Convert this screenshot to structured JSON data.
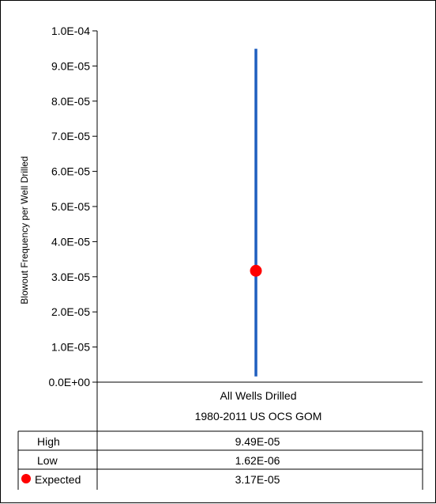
{
  "chart_data": {
    "type": "scatter",
    "ylabel": "Blowout Frequency per Well Drilled",
    "xlabel": "",
    "title": "",
    "ylim": [
      0,
      0.0001
    ],
    "y_ticks": [
      "0.0E+00",
      "1.0E-05",
      "2.0E-05",
      "3.0E-05",
      "4.0E-05",
      "5.0E-05",
      "6.0E-05",
      "7.0E-05",
      "8.0E-05",
      "9.0E-05",
      "1.0E-04"
    ],
    "categories": [
      "All Wells Drilled 1980-2011 US OCS GOM"
    ],
    "category_lines": [
      "All Wells Drilled",
      "1980-2011 US OCS GOM"
    ],
    "high": 9.49e-05,
    "low": 1.62e-06,
    "expected": 3.17e-05,
    "grid": false,
    "colors": {
      "range_line": "#1f5fbf",
      "expected_marker": "#ff0000"
    }
  },
  "table": {
    "rows": [
      {
        "label": "High",
        "value": "9.49E-05",
        "marker": false
      },
      {
        "label": "Low",
        "value": "1.62E-06",
        "marker": false
      },
      {
        "label": "Expected",
        "value": "3.17E-05",
        "marker": true
      }
    ]
  }
}
